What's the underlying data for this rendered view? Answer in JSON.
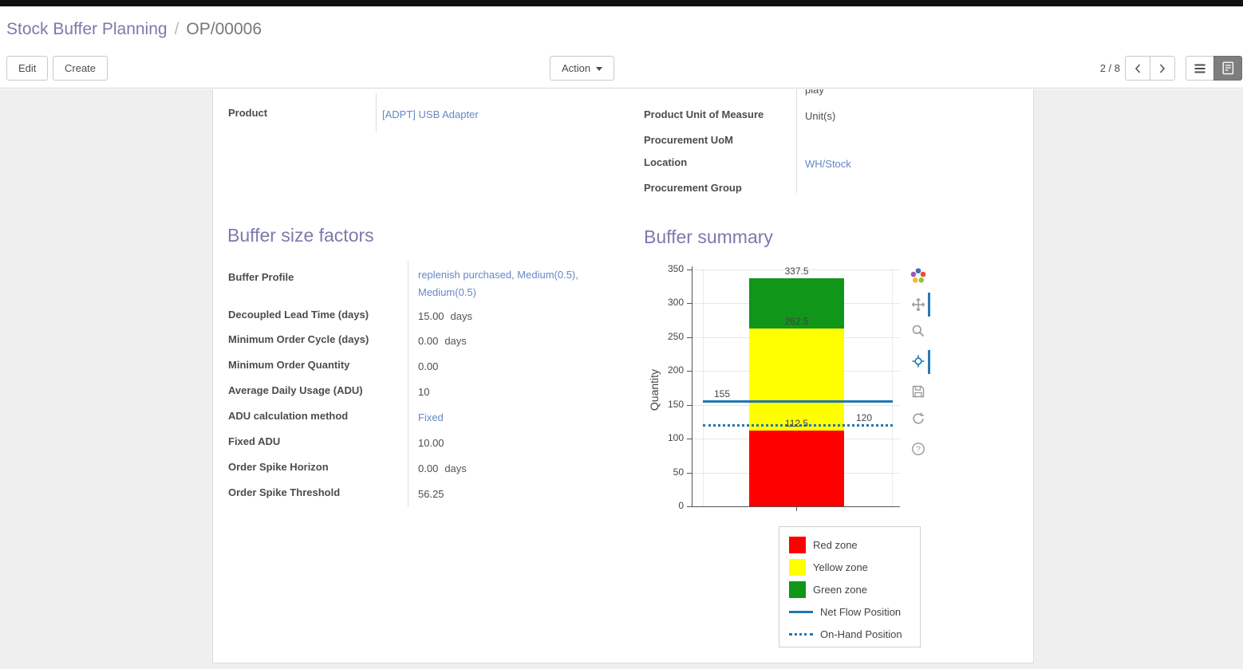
{
  "breadcrumb": {
    "parent": "Stock Buffer Planning",
    "separator": "/",
    "current": "OP/00006"
  },
  "control_panel": {
    "edit": "Edit",
    "create": "Create",
    "action": "Action",
    "pager": "2 / 8"
  },
  "colors": {
    "accent": "#7b7aac",
    "link": "#6588c6",
    "red_zone": "#ff0000",
    "yellow_zone": "#ffff00",
    "green_zone": "#109618",
    "flow_line": "#1f77b4"
  },
  "icons": {
    "caret-down": "▾",
    "chevron-left": "‹",
    "chevron-right": "›",
    "list-view": "☰",
    "form-view": "▤",
    "plotly-logo": "pinwheel",
    "pan": "✛",
    "zoom": "magnifier",
    "hover": "target",
    "save": "floppy",
    "reset": "circular-arrow",
    "help": "?"
  },
  "sheet": {
    "top_fragment": "play",
    "general_left": {
      "label": "Product",
      "value": "[ADPT] USB Adapter"
    },
    "general_right": [
      {
        "label": "Product Unit of Measure",
        "value": "Unit(s)"
      },
      {
        "label": "Procurement UoM",
        "value": ""
      },
      {
        "label": "Location",
        "value": "WH/Stock"
      },
      {
        "label": "Procurement Group",
        "value": ""
      }
    ],
    "factors": {
      "title": "Buffer size factors",
      "rows": [
        {
          "label": "Buffer Profile",
          "value": "replenish purchased, Medium(0.5), Medium(0.5)"
        },
        {
          "label": "Decoupled Lead Time (days)",
          "value": "15.00",
          "suffix": "days"
        },
        {
          "label": "Minimum Order Cycle (days)",
          "value": "0.00",
          "suffix": "days"
        },
        {
          "label": "Minimum Order Quantity",
          "value": "0.00"
        },
        {
          "label": "Average Daily Usage (ADU)",
          "value": "10"
        },
        {
          "label": "ADU calculation method",
          "value": "Fixed"
        },
        {
          "label": "Fixed ADU",
          "value": "10.00"
        },
        {
          "label": "Order Spike Horizon",
          "value": "0.00",
          "suffix": "days"
        },
        {
          "label": "Order Spike Threshold",
          "value": "56.25"
        }
      ]
    },
    "summary": {
      "title": "Buffer summary"
    }
  },
  "chart_data": {
    "type": "bar",
    "title": "Buffer summary",
    "xlabel": "",
    "ylabel": "Quantity",
    "ylim": [
      0,
      350
    ],
    "yticks": [
      0,
      50,
      100,
      150,
      200,
      250,
      300,
      350
    ],
    "grid": true,
    "legend_position": "bottom-right",
    "zones": [
      {
        "name": "Red zone",
        "from": 0,
        "to": 112.5,
        "color": "#ff0000"
      },
      {
        "name": "Yellow zone",
        "from": 112.5,
        "to": 262.5,
        "color": "#ffff00"
      },
      {
        "name": "Green zone",
        "from": 262.5,
        "to": 337.5,
        "color": "#109618"
      }
    ],
    "lines": [
      {
        "name": "Net Flow Position",
        "value": 155,
        "style": "solid",
        "color": "#1f77b4"
      },
      {
        "name": "On-Hand Position",
        "value": 120,
        "style": "dotted",
        "color": "#1f77b4"
      }
    ],
    "annotations": [
      {
        "text": "337.5",
        "value": 337.5,
        "anchor": "bar"
      },
      {
        "text": "262.5",
        "value": 262.5,
        "anchor": "bar"
      },
      {
        "text": "112.5",
        "value": 112.5,
        "anchor": "bar"
      },
      {
        "text": "155",
        "value": 155,
        "anchor": "left"
      },
      {
        "text": "120",
        "value": 120,
        "anchor": "right"
      }
    ],
    "legend": [
      "Red zone",
      "Yellow zone",
      "Green zone",
      "Net Flow Position",
      "On-Hand Position"
    ]
  }
}
